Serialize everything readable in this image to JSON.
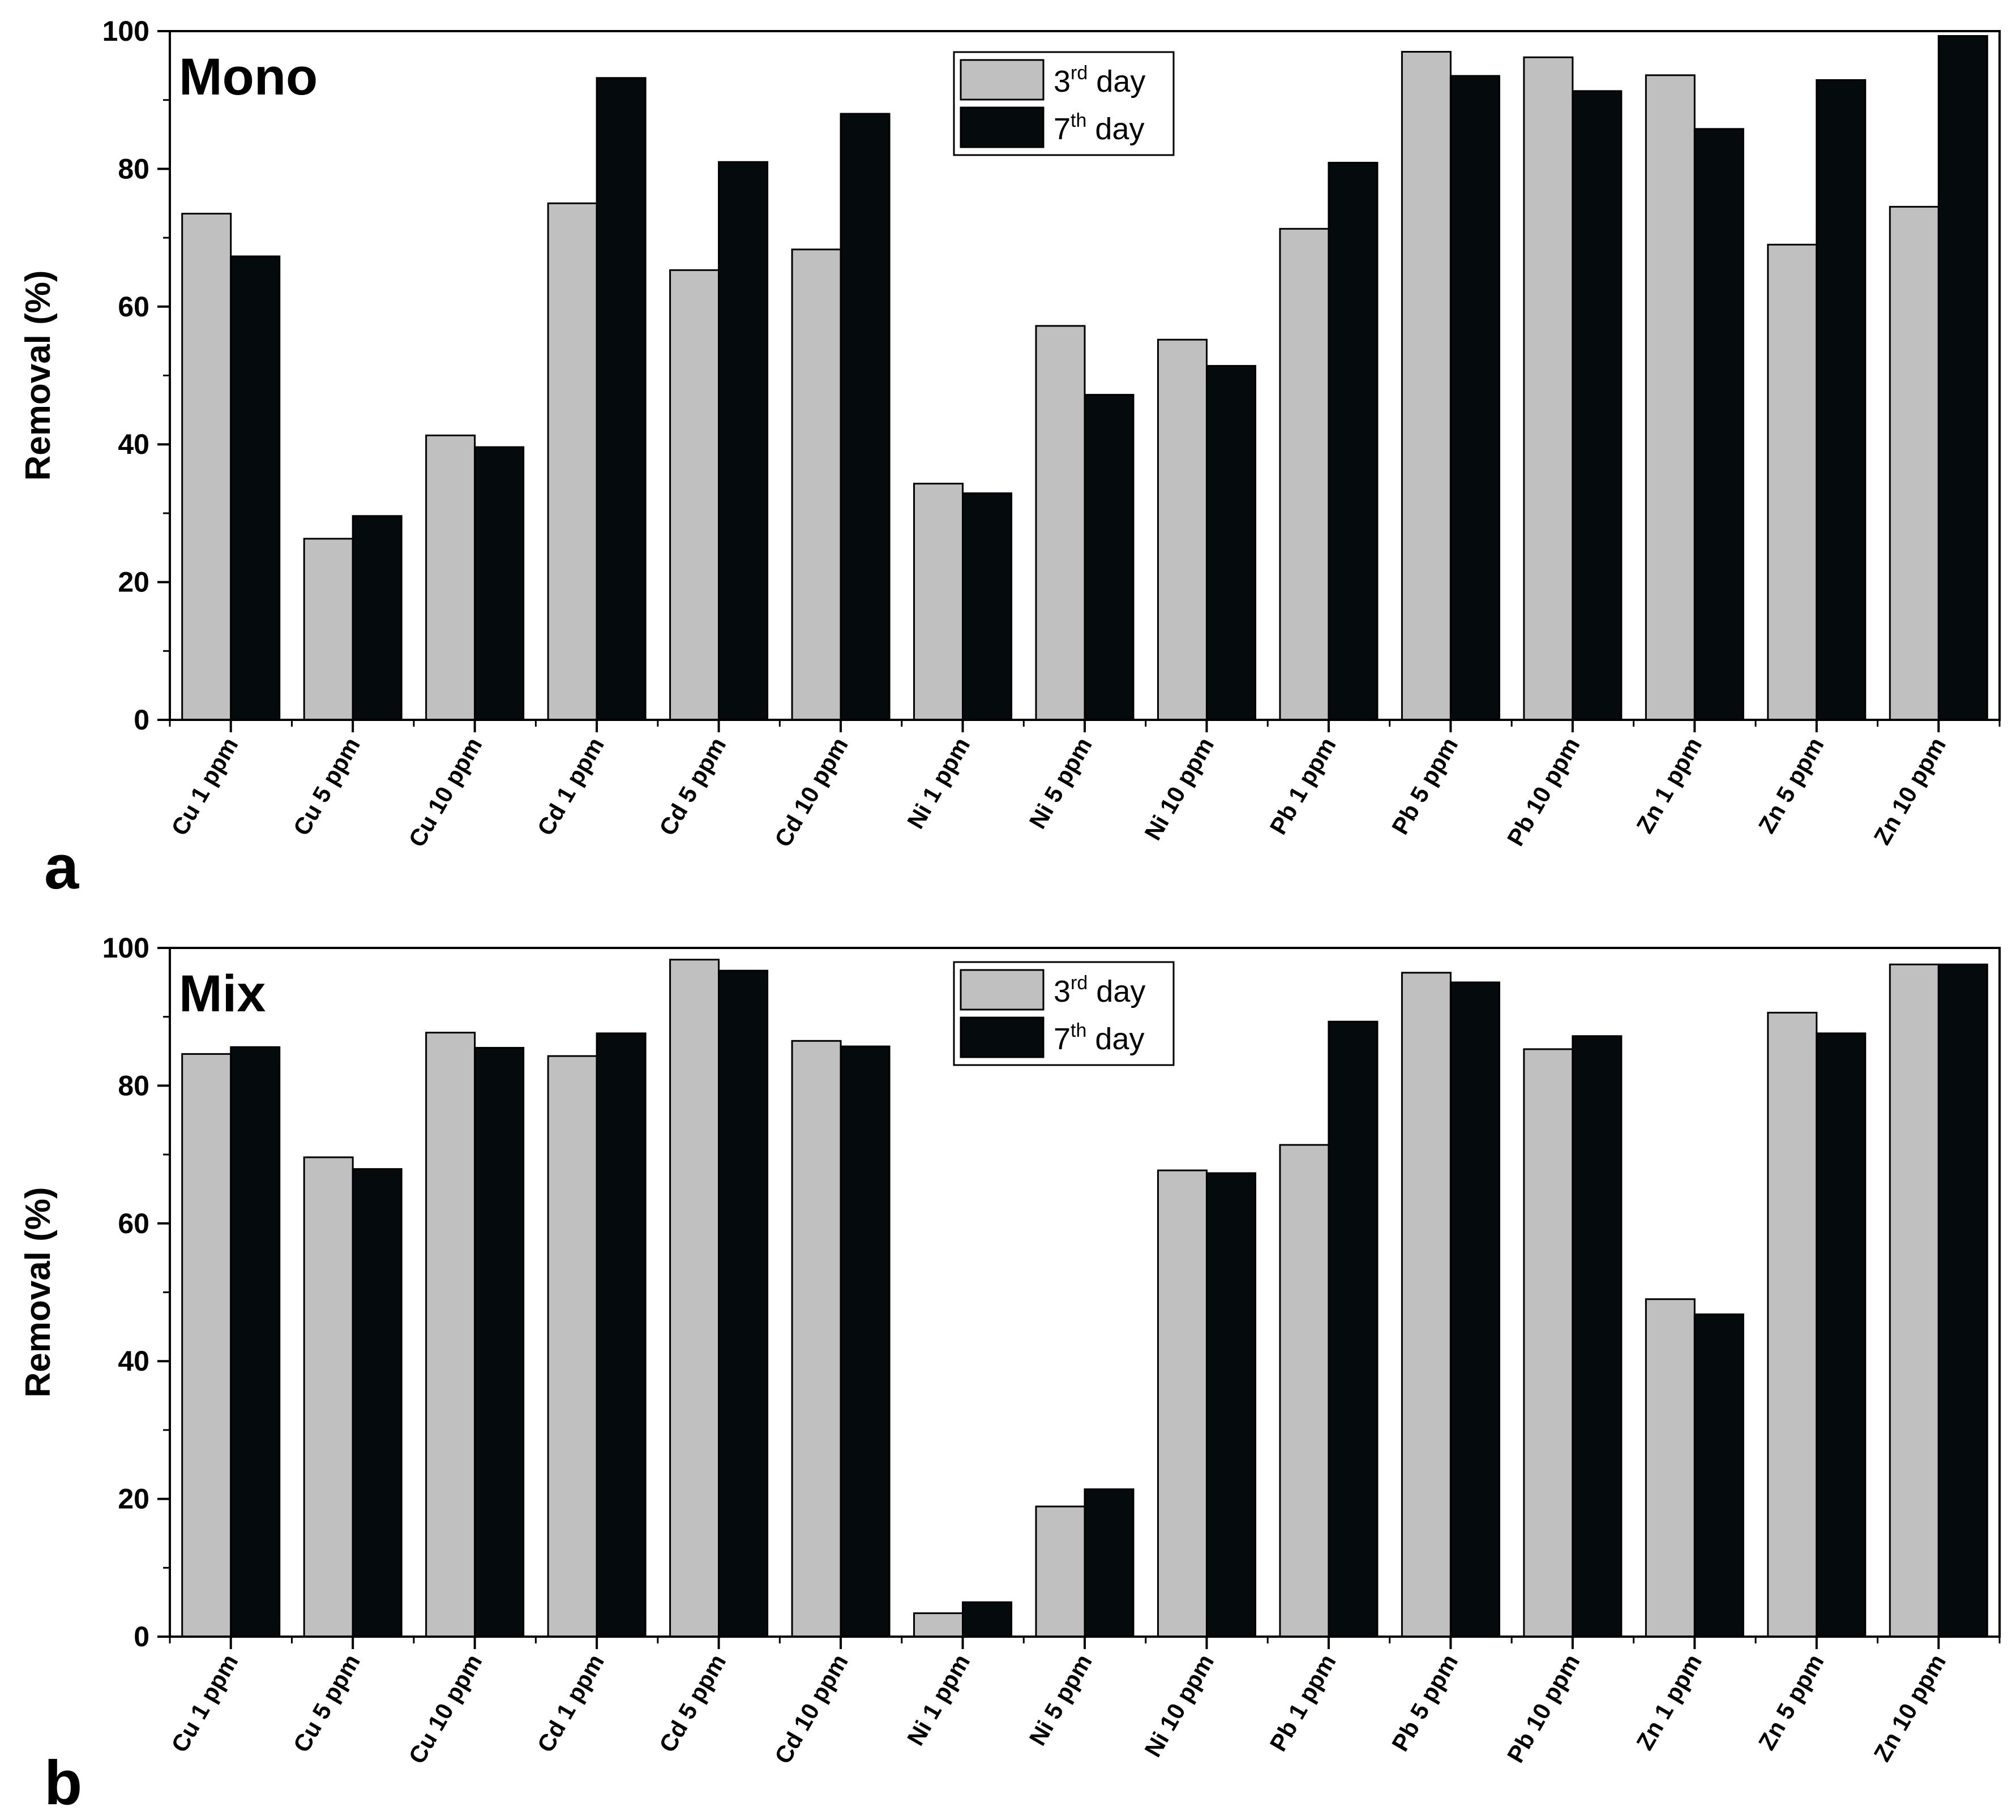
{
  "chart_data": [
    {
      "type": "bar",
      "panel_letter": "a",
      "title": "Mono",
      "ylabel": "Removal (%)",
      "xlabel": "",
      "ylim": [
        0,
        100
      ],
      "yticks": [
        0,
        20,
        40,
        60,
        80,
        100
      ],
      "categories": [
        "Cu 1 ppm",
        "Cu 5 ppm",
        "Cu 10 ppm",
        "Cd 1 ppm",
        "Cd 5 ppm",
        "Cd 10 ppm",
        "Ni 1 ppm",
        "Ni 5 ppm",
        "Ni 10 ppm",
        "Pb 1 ppm",
        "Pb 5 ppm",
        "Pb 10 ppm",
        "Zn 1 ppm",
        "Zn 5 ppm",
        "Zn 10 ppm"
      ],
      "series": [
        {
          "name": "3rd day",
          "name_base": "3",
          "name_sup": "rd",
          "name_rest": " day",
          "color": "#c0c0c0",
          "values": [
            73.5,
            26.3,
            41.3,
            75.0,
            65.3,
            68.3,
            34.3,
            57.2,
            55.2,
            71.3,
            97.0,
            96.2,
            93.6,
            69.0,
            74.5
          ]
        },
        {
          "name": "7th day",
          "name_base": "7",
          "name_sup": "th",
          "name_rest": " day",
          "color": "#050a0c",
          "values": [
            67.3,
            29.6,
            39.6,
            93.2,
            81.0,
            88.0,
            32.9,
            47.2,
            51.4,
            80.9,
            93.5,
            91.3,
            85.8,
            92.9,
            99.3
          ]
        }
      ],
      "legend_position": "top-center"
    },
    {
      "type": "bar",
      "panel_letter": "b",
      "title": "Mix",
      "ylabel": "Removal (%)",
      "xlabel": "",
      "ylim": [
        0,
        100
      ],
      "yticks": [
        0,
        20,
        40,
        60,
        80,
        100
      ],
      "categories": [
        "Cu 1 ppm",
        "Cu 5 ppm",
        "Cu 10 ppm",
        "Cd 1 ppm",
        "Cd 5 ppm",
        "Cd 10 ppm",
        "Ni 1 ppm",
        "Ni 5 ppm",
        "Ni 10 ppm",
        "Pb 1 ppm",
        "Pb 5 ppm",
        "Pb 10 ppm",
        "Zn 1 ppm",
        "Zn 5 ppm",
        "Zn 10 ppm"
      ],
      "series": [
        {
          "name": "3rd day",
          "name_base": "3",
          "name_sup": "rd",
          "name_rest": " day",
          "color": "#c0c0c0",
          "values": [
            84.6,
            69.6,
            87.7,
            84.3,
            98.3,
            86.5,
            3.4,
            18.9,
            67.7,
            71.4,
            96.4,
            85.3,
            49.0,
            90.6,
            97.6
          ]
        },
        {
          "name": "7th day",
          "name_base": "7",
          "name_sup": "th",
          "name_rest": " day",
          "color": "#050a0c",
          "values": [
            85.6,
            67.9,
            85.5,
            87.6,
            96.7,
            85.7,
            5.0,
            21.4,
            67.3,
            89.3,
            95.0,
            87.2,
            46.8,
            87.6,
            97.6
          ]
        }
      ],
      "legend_position": "top-center"
    }
  ]
}
